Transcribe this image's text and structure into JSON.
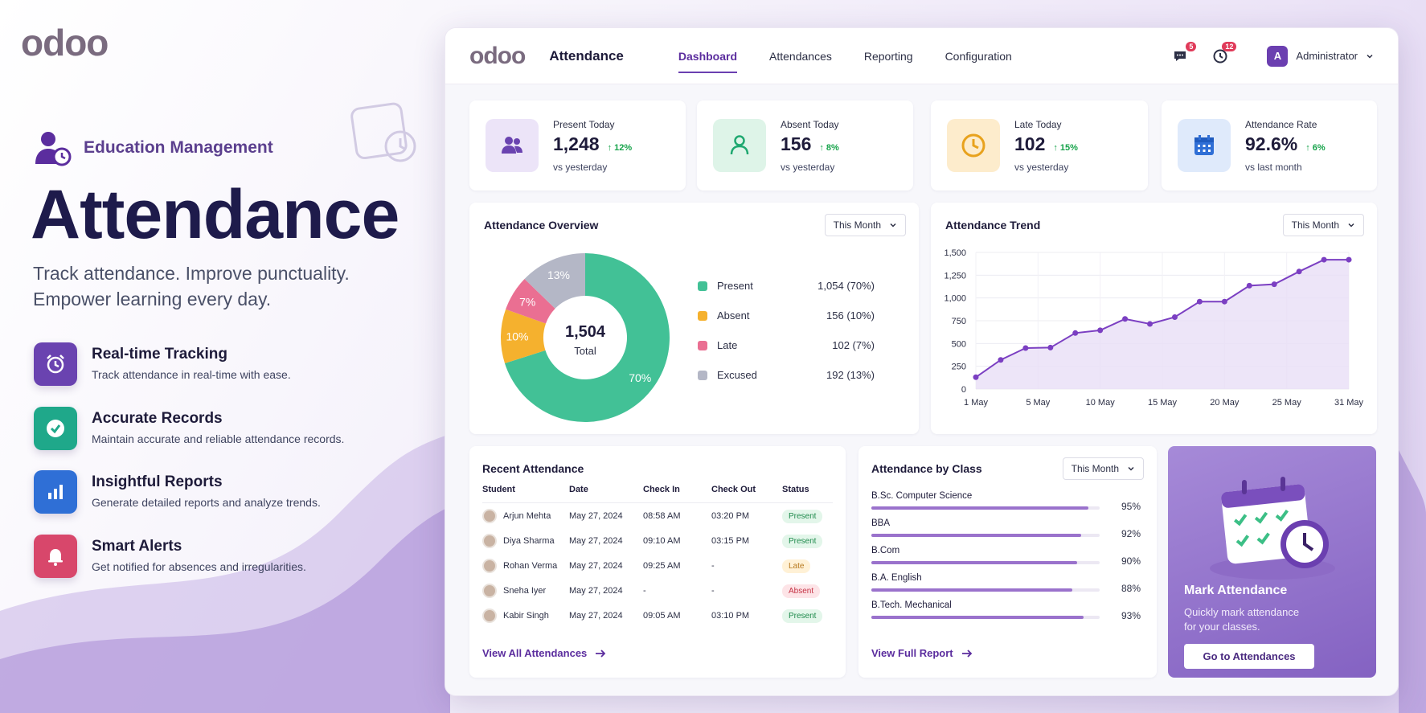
{
  "hero": {
    "brand": "odoo",
    "tag": "Education Management",
    "title": "Attendance",
    "subtitle_line1": "Track attendance. Improve punctuality.",
    "subtitle_line2": "Empower learning every day.",
    "features": [
      {
        "title": "Real-time Tracking",
        "desc": "Track attendance in real-time with ease.",
        "icon": "alarm-clock-icon",
        "color": "#6a43b0"
      },
      {
        "title": "Accurate Records",
        "desc": "Maintain accurate and reliable attendance records.",
        "icon": "check-circle-icon",
        "color": "#1fa88a"
      },
      {
        "title": "Insightful Reports",
        "desc": "Generate detailed reports and analyze trends.",
        "icon": "bar-chart-icon",
        "color": "#2f6fd6"
      },
      {
        "title": "Smart Alerts",
        "desc": "Get notified for absences and irregularities.",
        "icon": "bell-icon",
        "color": "#d8476b"
      }
    ]
  },
  "app": {
    "logo": "odoo",
    "name": "Attendance",
    "nav": [
      {
        "label": "Dashboard",
        "active": true
      },
      {
        "label": "Attendances",
        "active": false
      },
      {
        "label": "Reporting",
        "active": false
      },
      {
        "label": "Configuration",
        "active": false
      }
    ],
    "chat_badge": "5",
    "activity_badge": "12",
    "user_initial": "A",
    "user_name": "Administrator"
  },
  "stats": [
    {
      "label": "Present Today",
      "value": "1,248",
      "delta": "↑ 12%",
      "foot": "vs yesterday",
      "icon": "users-icon",
      "bg": "#ece4f8",
      "fg": "#6a43b0"
    },
    {
      "label": "Absent Today",
      "value": "156",
      "delta": "↑ 8%",
      "foot": "vs yesterday",
      "icon": "user-icon",
      "bg": "#def4e8",
      "fg": "#1fa870"
    },
    {
      "label": "Late Today",
      "value": "102",
      "delta": "↑ 15%",
      "foot": "vs yesterday",
      "icon": "clock-icon",
      "bg": "#fdeccc",
      "fg": "#e8a21d"
    },
    {
      "label": "Attendance Rate",
      "value": "92.6%",
      "delta": "↑ 6%",
      "foot": "vs last month",
      "icon": "calendar-icon",
      "bg": "#dfeafb",
      "fg": "#2f6fd6"
    }
  ],
  "overview": {
    "title": "Attendance Overview",
    "filter": "This Month",
    "total": "1,504",
    "total_label": "Total",
    "legend": [
      {
        "label": "Present",
        "value": "1,054 (70%)",
        "color": "#42c196"
      },
      {
        "label": "Absent",
        "value": "156 (10%)",
        "color": "#f5b12e"
      },
      {
        "label": "Late",
        "value": "102 (7%)",
        "color": "#ea6f92"
      },
      {
        "label": "Excused",
        "value": "192 (13%)",
        "color": "#b4b7c6"
      }
    ]
  },
  "trend": {
    "title": "Attendance Trend",
    "filter": "This Month"
  },
  "chart_data": [
    {
      "type": "pie",
      "title": "Attendance Overview",
      "categories": [
        "Present",
        "Absent",
        "Late",
        "Excused"
      ],
      "values": [
        1054,
        156,
        102,
        192
      ],
      "labels": [
        "70%",
        "10%",
        "7%",
        "13%"
      ],
      "colors": [
        "#42c196",
        "#f5b12e",
        "#ea6f92",
        "#b4b7c6"
      ]
    },
    {
      "type": "area",
      "title": "Attendance Trend",
      "x": [
        "1 May",
        "3 May",
        "5 May",
        "7 May",
        "9 May",
        "11 May",
        "13 May",
        "15 May",
        "17 May",
        "19 May",
        "21 May",
        "23 May",
        "25 May",
        "27 May",
        "29 May",
        "31 May"
      ],
      "xticks": [
        "1 May",
        "5 May",
        "10 May",
        "15 May",
        "20 May",
        "25 May",
        "31 May"
      ],
      "values": [
        130,
        320,
        450,
        455,
        615,
        645,
        770,
        715,
        790,
        960,
        960,
        1135,
        1150,
        1290,
        1420,
        1420
      ],
      "yticks": [
        "0",
        "250",
        "500",
        "750",
        "1,000",
        "1,250",
        "1,500"
      ],
      "ylim": [
        0,
        1500
      ],
      "color": "#7b3fc2"
    }
  ],
  "recent": {
    "title": "Recent Attendance",
    "columns": [
      "Student",
      "Date",
      "Check In",
      "Check Out",
      "Status"
    ],
    "rows": [
      {
        "name": "Arjun Mehta",
        "date": "May 27, 2024",
        "in": "08:58 AM",
        "out": "03:20 PM",
        "status": "Present",
        "kind": "present"
      },
      {
        "name": "Diya Sharma",
        "date": "May 27, 2024",
        "in": "09:10 AM",
        "out": "03:15 PM",
        "status": "Present",
        "kind": "present"
      },
      {
        "name": "Rohan Verma",
        "date": "May 27, 2024",
        "in": "09:25 AM",
        "out": "-",
        "status": "Late",
        "kind": "late"
      },
      {
        "name": "Sneha Iyer",
        "date": "May 27, 2024",
        "in": "-",
        "out": "-",
        "status": "Absent",
        "kind": "absent"
      },
      {
        "name": "Kabir Singh",
        "date": "May 27, 2024",
        "in": "09:05 AM",
        "out": "03:10 PM",
        "status": "Present",
        "kind": "present"
      }
    ],
    "link": "View All Attendances"
  },
  "byclass": {
    "title": "Attendance by Class",
    "filter": "This Month",
    "classes": [
      {
        "name": "B.Sc. Computer Science",
        "pct": "95%",
        "value": 0.95
      },
      {
        "name": "BBA",
        "pct": "92%",
        "value": 0.92
      },
      {
        "name": "B.Com",
        "pct": "90%",
        "value": 0.9
      },
      {
        "name": "B.A. English",
        "pct": "88%",
        "value": 0.88
      },
      {
        "name": "B.Tech. Mechanical",
        "pct": "93%",
        "value": 0.93
      }
    ],
    "link": "View Full Report"
  },
  "promo": {
    "title": "Mark Attendance",
    "desc_line1": "Quickly mark attendance",
    "desc_line2": "for your classes.",
    "button": "Go to Attendances"
  }
}
